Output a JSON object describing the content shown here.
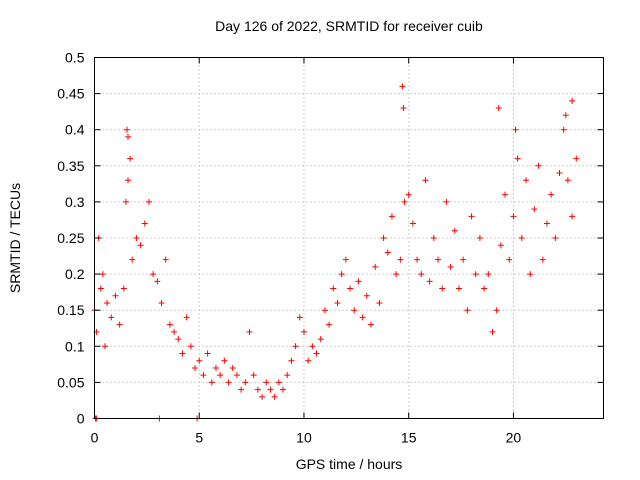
{
  "chart_data": {
    "type": "scatter",
    "title": "Day 126 of 2022, SRMTID for receiver cuib",
    "xlabel": "GPS time / hours",
    "ylabel": "SRMTID / TECUs",
    "xlim": [
      0,
      24.3
    ],
    "ylim": [
      0,
      0.5
    ],
    "xticks": [
      0,
      5,
      10,
      15,
      20
    ],
    "xtick_labels": [
      "0",
      "5",
      "10",
      "15",
      "20"
    ],
    "yticks": [
      0,
      0.05,
      0.1,
      0.15,
      0.2,
      0.25,
      0.3,
      0.35,
      0.4,
      0.45,
      0.5
    ],
    "ytick_labels": [
      "0",
      "0.05",
      "0.1",
      "0.15",
      "0.2",
      "0.25",
      "0.3",
      "0.35",
      "0.4",
      "0.45",
      "0.5"
    ],
    "grid": true,
    "marker": "+",
    "marker_color": "#ff0000",
    "series": [
      {
        "name": "SRMTID",
        "x": [
          0.0,
          0.1,
          0.2,
          0.3,
          0.4,
          0.5,
          0.6,
          0.8,
          1.0,
          1.2,
          1.4,
          1.5,
          1.6,
          1.7,
          1.8,
          2.0,
          2.2,
          2.4,
          2.6,
          2.8,
          3.0,
          3.2,
          3.4,
          3.6,
          3.8,
          4.0,
          4.2,
          4.4,
          4.6,
          4.8,
          5.0,
          5.2,
          5.4,
          5.6,
          5.8,
          6.0,
          6.2,
          6.4,
          6.6,
          6.8,
          7.0,
          7.2,
          7.4,
          7.6,
          7.8,
          8.0,
          8.2,
          8.4,
          8.6,
          8.8,
          9.0,
          9.2,
          9.4,
          9.6,
          9.8,
          10.0,
          10.2,
          10.4,
          10.6,
          10.8,
          11.0,
          11.2,
          11.4,
          11.6,
          11.8,
          12.0,
          12.2,
          12.4,
          12.6,
          12.8,
          13.0,
          13.2,
          13.4,
          13.6,
          13.8,
          14.0,
          14.2,
          14.4,
          14.6,
          14.8,
          15.0,
          15.2,
          15.4,
          15.6,
          15.8,
          16.0,
          16.2,
          16.4,
          16.6,
          16.8,
          17.0,
          17.2,
          17.4,
          17.6,
          17.8,
          18.0,
          18.2,
          18.4,
          18.6,
          18.8,
          19.0,
          19.2,
          19.4,
          19.6,
          19.8,
          20.0,
          20.2,
          20.4,
          20.6,
          20.8,
          21.0,
          21.2,
          21.4,
          21.6,
          21.8,
          22.0,
          22.2,
          22.4,
          22.6,
          22.8,
          23.0,
          0.05,
          0.1,
          3.1,
          4.9,
          1.55,
          1.6,
          14.7,
          14.75,
          22.5,
          22.8,
          19.3,
          20.1
        ],
        "y": [
          0.15,
          0.12,
          0.25,
          0.18,
          0.2,
          0.1,
          0.16,
          0.14,
          0.17,
          0.13,
          0.18,
          0.3,
          0.39,
          0.36,
          0.22,
          0.25,
          0.24,
          0.27,
          0.3,
          0.2,
          0.19,
          0.16,
          0.22,
          0.13,
          0.12,
          0.11,
          0.09,
          0.14,
          0.1,
          0.07,
          0.08,
          0.06,
          0.09,
          0.05,
          0.07,
          0.06,
          0.08,
          0.05,
          0.07,
          0.06,
          0.04,
          0.05,
          0.12,
          0.06,
          0.04,
          0.03,
          0.05,
          0.04,
          0.03,
          0.05,
          0.04,
          0.06,
          0.08,
          0.1,
          0.14,
          0.12,
          0.08,
          0.1,
          0.09,
          0.11,
          0.15,
          0.13,
          0.18,
          0.16,
          0.2,
          0.22,
          0.18,
          0.15,
          0.19,
          0.14,
          0.17,
          0.13,
          0.21,
          0.16,
          0.25,
          0.23,
          0.28,
          0.2,
          0.22,
          0.3,
          0.31,
          0.27,
          0.22,
          0.2,
          0.33,
          0.19,
          0.25,
          0.22,
          0.18,
          0.3,
          0.21,
          0.26,
          0.18,
          0.22,
          0.15,
          0.28,
          0.2,
          0.25,
          0.18,
          0.2,
          0.12,
          0.15,
          0.24,
          0.31,
          0.22,
          0.28,
          0.36,
          0.25,
          0.33,
          0.2,
          0.29,
          0.35,
          0.22,
          0.27,
          0.31,
          0.25,
          0.34,
          0.4,
          0.33,
          0.28,
          0.36,
          0.0,
          0.0,
          0.0,
          0.0,
          0.4,
          0.33,
          0.46,
          0.43,
          0.42,
          0.44,
          0.43,
          0.4
        ]
      }
    ]
  }
}
